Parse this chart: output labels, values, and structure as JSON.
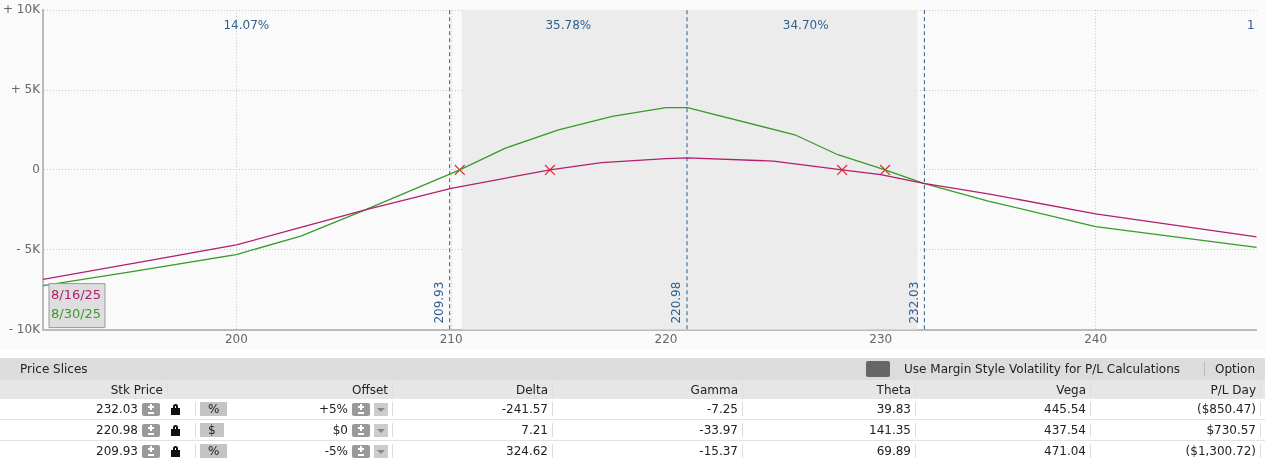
{
  "chart_data": [
    {
      "type": "line",
      "xlim": [
        191,
        247.5
      ],
      "xticks": [
        200,
        210,
        220,
        230,
        240
      ],
      "ylim": [
        -10000,
        10000
      ],
      "yticks": [
        {
          "value": -10000,
          "label": "- 10K"
        },
        {
          "value": -5000,
          "label": "- 5K"
        },
        0,
        {
          "value": 5000,
          "label": "+ 5K"
        },
        {
          "value": 10000,
          "label": "+ 10K"
        }
      ],
      "grid": true,
      "legend": "bottom left",
      "series": [
        {
          "name": "8/16/25",
          "color": "#b0206e",
          "x": [
            191,
            195,
            200,
            203,
            206,
            210,
            214.6,
            217,
            220,
            221,
            225,
            228.2,
            230,
            232,
            235,
            240,
            247.5
          ],
          "values": [
            -6850,
            -5900,
            -4700,
            -3600,
            -2500,
            -1150,
            0,
            450,
            700,
            750,
            550,
            0,
            -300,
            -850,
            -1500,
            -2750,
            -4200
          ]
        },
        {
          "name": "8/30/25",
          "color": "#3a9a2a",
          "x": [
            191,
            195,
            200,
            203,
            206,
            210.4,
            212.5,
            215,
            217.5,
            220,
            221,
            226,
            228,
            230.2,
            232,
            235,
            240,
            247.5
          ],
          "values": [
            -7250,
            -6400,
            -5300,
            -4150,
            -2500,
            0,
            1350,
            2500,
            3350,
            3900,
            3900,
            2200,
            950,
            0,
            -850,
            -1950,
            -3550,
            -4850
          ]
        },
        {
          "type": "scatter",
          "color": "#e03030",
          "marker": "cross",
          "x": [
            210.4,
            214.6,
            228.2,
            230.2
          ],
          "values": [
            0,
            0,
            0,
            0
          ]
        }
      ],
      "bands": [
        {
          "axis": "x",
          "from": 210.5,
          "to": 231.7,
          "color": "#ececec"
        }
      ],
      "ref_lines": [
        {
          "axis": "x",
          "value": 209.93,
          "label": "209.93",
          "color": "#2f5f8f",
          "line_style": "dashed"
        },
        {
          "axis": "x",
          "value": 220.98,
          "label": "220.98",
          "color": "#2f5f8f",
          "line_style": "dashed"
        },
        {
          "axis": "x",
          "value": 232.03,
          "label": "232.03",
          "color": "#2f5f8f",
          "line_style": "dashed"
        }
      ],
      "annotations": [
        "14.07%",
        "35.78%",
        "34.70%",
        "1"
      ]
    },
    {
      "type": "other",
      "title": "Price Slices",
      "annotations": [
        "Use Margin Style Volatility for P/L Calculations",
        "Option",
        "Stk Price",
        "Offset",
        "Delta",
        "Gamma",
        "Theta",
        "Vega",
        "P/L Day",
        "232.03",
        "%",
        "+5%",
        "-241.57",
        "-7.25",
        "39.83",
        "445.54",
        "($850.47)",
        "220.98",
        "$",
        "$0",
        "7.21",
        "-33.97",
        "141.35",
        "437.54",
        "$730.57",
        "209.93",
        "%",
        "-5%",
        "324.62",
        "-15.37",
        "69.89",
        "471.04",
        "($1,300.72)"
      ]
    }
  ]
}
